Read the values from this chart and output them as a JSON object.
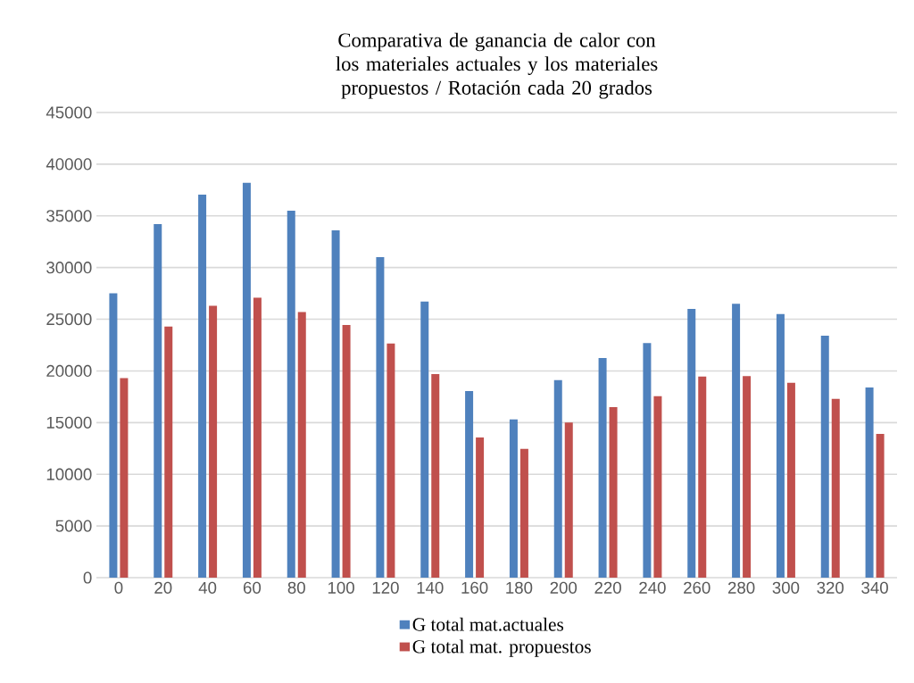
{
  "chart_data": {
    "type": "bar",
    "title": "Comparativa de ganancia de calor con los materiales actuales y los materiales propuestos / Rotación cada 20 grados",
    "categories": [
      "0",
      "20",
      "40",
      "60",
      "80",
      "100",
      "120",
      "140",
      "160",
      "180",
      "200",
      "220",
      "240",
      "260",
      "280",
      "300",
      "320",
      "340"
    ],
    "series": [
      {
        "name": "G total mat.actuales",
        "color": "#4f81bd",
        "values": [
          27500,
          34200,
          37050,
          38200,
          35500,
          33600,
          31000,
          26700,
          18050,
          15300,
          19100,
          21250,
          22700,
          26000,
          26500,
          25500,
          23400,
          18400
        ]
      },
      {
        "name": "G total mat. propuestos",
        "color": "#c0504d",
        "values": [
          19300,
          24300,
          26300,
          27100,
          25700,
          24450,
          22650,
          19700,
          13550,
          12450,
          15000,
          16500,
          17550,
          19450,
          19500,
          18850,
          17300,
          13900
        ]
      }
    ],
    "ylim": [
      0,
      45000
    ],
    "yticks": [
      0,
      5000,
      10000,
      15000,
      20000,
      25000,
      30000,
      35000,
      40000,
      45000
    ],
    "grid": "y",
    "legend": "bottom"
  }
}
